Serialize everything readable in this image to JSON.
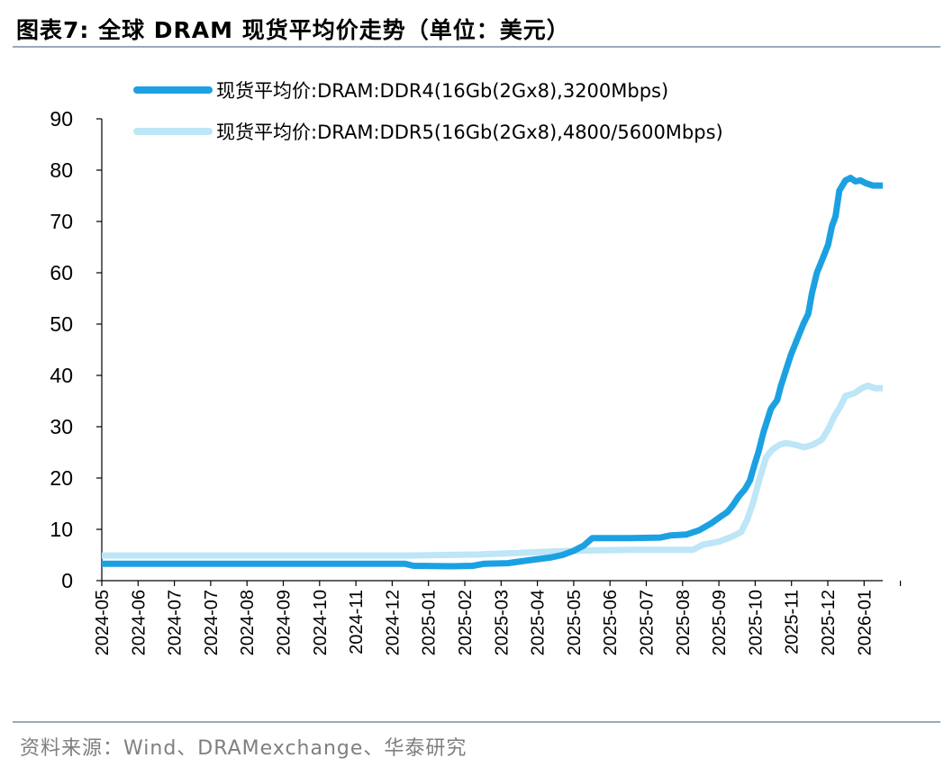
{
  "figure": {
    "title": "图表7:  全球 DRAM 现货平均价走势（单位：美元）",
    "source": "资料来源：Wind、DRAMexchange、华泰研究"
  },
  "chart_data": {
    "type": "line",
    "title": "全球 DRAM 现货平均价走势（单位：美元）",
    "xlabel": "",
    "ylabel": "",
    "ylim": [
      0,
      90
    ],
    "yticks": [
      0,
      10,
      20,
      30,
      40,
      50,
      60,
      70,
      80,
      90
    ],
    "xlim": [
      "2024-05-01",
      "2026-01-20"
    ],
    "xtick_labels": [
      "2024-05",
      "2024-06",
      "2024-07",
      "2024-07",
      "2024-08",
      "2024-09",
      "2024-10",
      "2024-11",
      "2024-12",
      "2025-01",
      "2025-02",
      "2025-03",
      "2025-04",
      "2025-05",
      "2025-06",
      "2025-07",
      "2025-08",
      "2025-09",
      "2025-10",
      "2025-11",
      "2025-12",
      "2026-01"
    ],
    "grid": false,
    "legend_position": "top",
    "series": [
      {
        "name": "现货平均价:DRAM:DDR4(16Gb(2Gx8),3200Mbps)",
        "color": "#1ba1e2",
        "points": [
          [
            "2024-05-01",
            3.3
          ],
          [
            "2024-08-01",
            3.3
          ],
          [
            "2024-12-31",
            3.3
          ],
          [
            "2025-01-07",
            2.9
          ],
          [
            "2025-02-06",
            2.8
          ],
          [
            "2025-02-24",
            2.9
          ],
          [
            "2025-03-05",
            3.3
          ],
          [
            "2025-03-24",
            3.4
          ],
          [
            "2025-04-02",
            3.7
          ],
          [
            "2025-04-14",
            4.1
          ],
          [
            "2025-04-27",
            4.5
          ],
          [
            "2025-05-07",
            5.0
          ],
          [
            "2025-05-16",
            5.8
          ],
          [
            "2025-05-24",
            6.8
          ],
          [
            "2025-05-31",
            8.3
          ],
          [
            "2025-06-15",
            8.3
          ],
          [
            "2025-07-01",
            8.3
          ],
          [
            "2025-07-25",
            8.4
          ],
          [
            "2025-08-02",
            8.8
          ],
          [
            "2025-08-15",
            9.0
          ],
          [
            "2025-08-25",
            9.8
          ],
          [
            "2025-09-04",
            11.2
          ],
          [
            "2025-09-11",
            12.4
          ],
          [
            "2025-09-17",
            13.4
          ],
          [
            "2025-09-21",
            14.6
          ],
          [
            "2025-09-26",
            16.4
          ],
          [
            "2025-10-01",
            17.8
          ],
          [
            "2025-10-05",
            19.5
          ],
          [
            "2025-10-09",
            22.8
          ],
          [
            "2025-10-12",
            25.2
          ],
          [
            "2025-10-16",
            29.0
          ],
          [
            "2025-10-22",
            33.5
          ],
          [
            "2025-10-27",
            35.2
          ],
          [
            "2025-10-30",
            38.0
          ],
          [
            "2025-11-03",
            41.0
          ],
          [
            "2025-11-07",
            44.0
          ],
          [
            "2025-11-12",
            47.0
          ],
          [
            "2025-11-17",
            50.0
          ],
          [
            "2025-11-21",
            52.0
          ],
          [
            "2025-11-24",
            56.0
          ],
          [
            "2025-11-28",
            60.0
          ],
          [
            "2025-12-03",
            63.0
          ],
          [
            "2025-12-07",
            65.5
          ],
          [
            "2025-12-10",
            69.0
          ],
          [
            "2025-12-13",
            71.0
          ],
          [
            "2025-12-16",
            76.0
          ],
          [
            "2025-12-21",
            78.0
          ],
          [
            "2025-12-25",
            78.5
          ],
          [
            "2025-12-29",
            77.8
          ],
          [
            "2026-01-02",
            78.0
          ],
          [
            "2026-01-06",
            77.5
          ],
          [
            "2026-01-12",
            77.0
          ],
          [
            "2026-01-20",
            77.0
          ]
        ]
      },
      {
        "name": "现货平均价:DRAM:DDR5(16Gb(2Gx8),4800/5600Mbps)",
        "color": "#bde6f7",
        "points": [
          [
            "2024-05-01",
            4.9
          ],
          [
            "2024-09-01",
            4.9
          ],
          [
            "2025-01-01",
            4.9
          ],
          [
            "2025-03-01",
            5.1
          ],
          [
            "2025-04-01",
            5.4
          ],
          [
            "2025-05-01",
            5.7
          ],
          [
            "2025-06-01",
            5.9
          ],
          [
            "2025-07-01",
            6.0
          ],
          [
            "2025-08-01",
            6.0
          ],
          [
            "2025-08-20",
            6.0
          ],
          [
            "2025-08-28",
            7.0
          ],
          [
            "2025-09-10",
            7.6
          ],
          [
            "2025-09-20",
            8.5
          ],
          [
            "2025-09-28",
            9.5
          ],
          [
            "2025-10-03",
            12.0
          ],
          [
            "2025-10-08",
            15.5
          ],
          [
            "2025-10-13",
            20.0
          ],
          [
            "2025-10-18",
            24.0
          ],
          [
            "2025-10-23",
            25.5
          ],
          [
            "2025-10-29",
            26.5
          ],
          [
            "2025-11-03",
            26.8
          ],
          [
            "2025-11-10",
            26.5
          ],
          [
            "2025-11-18",
            26.0
          ],
          [
            "2025-11-25",
            26.5
          ],
          [
            "2025-12-02",
            27.5
          ],
          [
            "2025-12-07",
            29.5
          ],
          [
            "2025-12-12",
            32.0
          ],
          [
            "2025-12-17",
            34.0
          ],
          [
            "2025-12-21",
            36.0
          ],
          [
            "2025-12-28",
            36.5
          ],
          [
            "2026-01-03",
            37.5
          ],
          [
            "2026-01-08",
            38.0
          ],
          [
            "2026-01-14",
            37.5
          ],
          [
            "2026-01-20",
            37.5
          ]
        ]
      }
    ]
  }
}
